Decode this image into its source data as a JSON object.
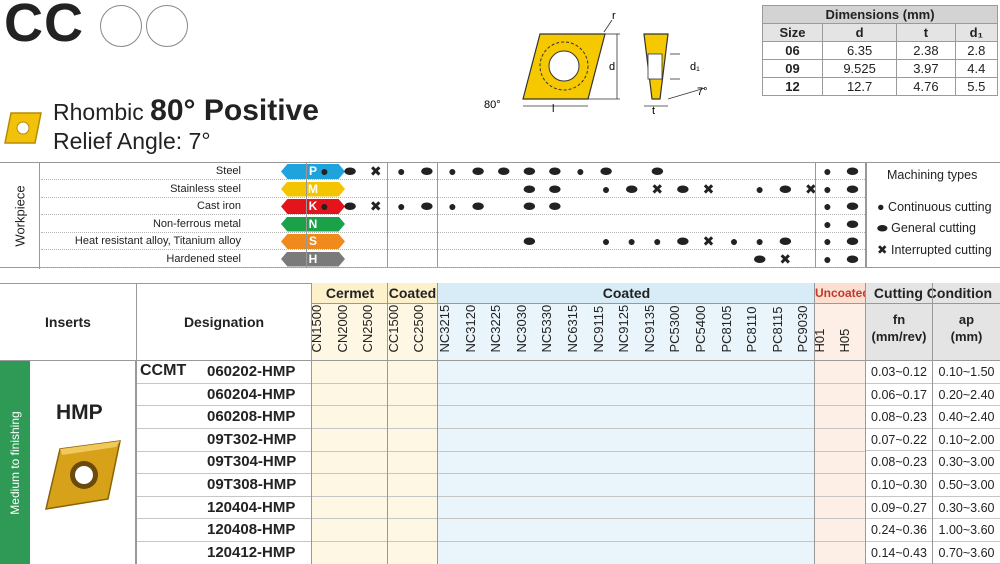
{
  "header": {
    "title": "CC",
    "shape_label": "Rhombic",
    "shape_angle": "80° Positive",
    "relief_angle": "Relief Angle: 7°"
  },
  "diagram": {
    "labels": {
      "r": "r",
      "d": "d",
      "d1": "d₁",
      "t": "t",
      "l": "l",
      "angle_80": "80°",
      "angle_7": "7°"
    }
  },
  "dimensions": {
    "caption": "Dimensions (mm)",
    "columns": [
      "Size",
      "d",
      "t",
      "d₁"
    ],
    "rows": [
      [
        "06",
        "6.35",
        "2.38",
        "2.8"
      ],
      [
        "09",
        "9.525",
        "3.97",
        "4.4"
      ],
      [
        "12",
        "12.7",
        "4.76",
        "5.5"
      ]
    ]
  },
  "workpiece": {
    "side_label": "Workpiece",
    "rows": [
      {
        "name": "Steel",
        "iso": "P",
        "color": "#1ea3dc"
      },
      {
        "name": "Stainless steel",
        "iso": "M",
        "color": "#f5c400"
      },
      {
        "name": "Cast iron",
        "iso": "K",
        "color": "#e3141b"
      },
      {
        "name": "Non-ferrous metal",
        "iso": "N",
        "color": "#1aa14a"
      },
      {
        "name": "Heat resistant alloy, Titanium alloy",
        "iso": "S",
        "color": "#f08a1c"
      },
      {
        "name": "Hardened steel",
        "iso": "H",
        "color": "#7a7a7a"
      }
    ],
    "legend": {
      "title": "Machining types",
      "items": [
        {
          "symbol": "●",
          "label": "Continuous cutting"
        },
        {
          "symbol": "⬬",
          "label": "General cutting"
        },
        {
          "symbol": "✖",
          "label": "Interrupted cutting"
        }
      ]
    },
    "marks": [
      [
        "C",
        "G",
        "I",
        "C",
        "G",
        "C",
        "G",
        "G",
        "G",
        "G",
        "C",
        "G",
        "",
        "G",
        "",
        "",
        "",
        "",
        "",
        "",
        "C",
        "G"
      ],
      [
        "",
        "",
        "",
        "",
        "",
        "",
        "",
        "",
        "G",
        "G",
        "",
        "C",
        "G",
        "I",
        "G",
        "I",
        "",
        "C",
        "G",
        "I",
        "C",
        "G"
      ],
      [
        "C",
        "G",
        "I",
        "C",
        "G",
        "C",
        "G",
        "",
        "G",
        "G",
        "",
        "",
        "",
        "",
        "",
        "",
        "",
        "",
        "",
        "",
        "C",
        "G"
      ],
      [
        "",
        "",
        "",
        "",
        "",
        "",
        "",
        "",
        "",
        "",
        "",
        "",
        "",
        "",
        "",
        "",
        "",
        "",
        "",
        "",
        "C",
        "G"
      ],
      [
        "",
        "",
        "",
        "",
        "",
        "",
        "",
        "",
        "G",
        "",
        "",
        "C",
        "C",
        "C",
        "G",
        "I",
        "C",
        "C",
        "G",
        "",
        "C",
        "G"
      ],
      [
        "",
        "",
        "",
        "",
        "",
        "",
        "",
        "",
        "",
        "",
        "",
        "",
        "",
        "",
        "",
        "",
        "",
        "G",
        "I",
        "",
        "C",
        "G"
      ]
    ]
  },
  "table": {
    "inserts_header": "Inserts",
    "designation_header": "Designation",
    "groups": [
      "Cermet",
      "Coated",
      "Coated",
      "Uncoated",
      "Cutting Condition"
    ],
    "grades": [
      "CN1500",
      "CN2000",
      "CN2500",
      "CC1500",
      "CC2500",
      "NC3215",
      "NC3120",
      "NC3225",
      "NC3030",
      "NC5330",
      "NC6315",
      "NC9115",
      "NC9125",
      "NC9135",
      "PC5300",
      "PC5400",
      "PC8105",
      "PC8110",
      "PC8115",
      "PC9030",
      "H01",
      "H05"
    ],
    "fn_header": [
      "fn",
      "(mm/rev)"
    ],
    "ap_header": [
      "ap",
      "(mm)"
    ],
    "side_label": "Medium to finishing",
    "chipbreaker": "HMP",
    "prefix": "CCMT",
    "rows": [
      {
        "code": "060202-HMP",
        "fn": "0.03~0.12",
        "ap": "0.10~1.50"
      },
      {
        "code": "060204-HMP",
        "fn": "0.06~0.17",
        "ap": "0.20~2.40"
      },
      {
        "code": "060208-HMP",
        "fn": "0.08~0.23",
        "ap": "0.40~2.40"
      },
      {
        "code": "09T302-HMP",
        "fn": "0.07~0.22",
        "ap": "0.10~2.00"
      },
      {
        "code": "09T304-HMP",
        "fn": "0.08~0.23",
        "ap": "0.30~3.00"
      },
      {
        "code": "09T308-HMP",
        "fn": "0.10~0.30",
        "ap": "0.50~3.00"
      },
      {
        "code": "120404-HMP",
        "fn": "0.09~0.27",
        "ap": "0.30~3.60"
      },
      {
        "code": "120408-HMP",
        "fn": "0.24~0.36",
        "ap": "1.00~3.60"
      },
      {
        "code": "120412-HMP",
        "fn": "0.14~0.43",
        "ap": "0.70~3.60"
      }
    ]
  },
  "colors": {
    "cermet_bg": "#fdf1cc",
    "coated1_bg": "#fdf1cc",
    "coated2_bg": "#d8ecf8",
    "uncoated_bg": "#fbe0d2",
    "cond_bg": "#e4e4e4",
    "side_green": "#2f9a55",
    "uncoated_text": "#c0392b"
  }
}
